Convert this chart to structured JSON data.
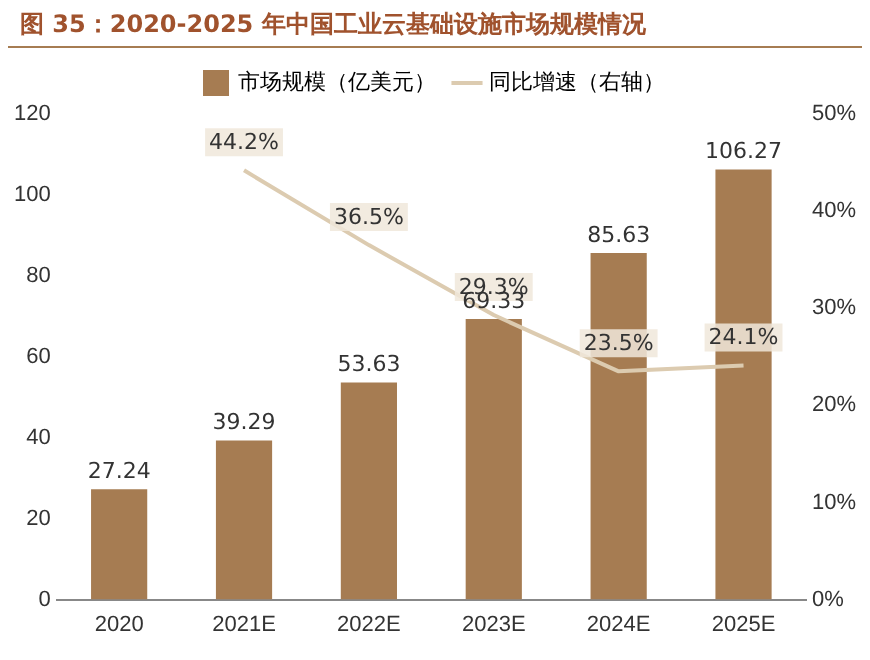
{
  "chart_data": {
    "type": "bar",
    "title": "图 35：2020-2025 年中国工业云基础设施市场规模情况",
    "categories": [
      "2020",
      "2021E",
      "2022E",
      "2023E",
      "2024E",
      "2025E"
    ],
    "series": [
      {
        "name": "市场规模（亿美元）",
        "color": "#a67c52",
        "values": [
          27.24,
          39.29,
          53.63,
          69.33,
          85.63,
          106.27
        ],
        "value_labels": [
          "27.24",
          "39.29",
          "53.63",
          "69.33",
          "85.63",
          "106.27"
        ]
      },
      {
        "name": "同比增速（右轴）",
        "type": "line",
        "axis": "y2",
        "color": "#dccbb0",
        "values": [
          null,
          44.2,
          36.5,
          29.3,
          23.5,
          24.1
        ],
        "value_labels": [
          null,
          "44.2%",
          "36.5%",
          "29.3%",
          "23.5%",
          "24.1%"
        ]
      }
    ],
    "ylim": [
      0,
      120
    ],
    "yticks": [
      0,
      20,
      40,
      60,
      80,
      100,
      120
    ],
    "y2lim": [
      0,
      50
    ],
    "y2ticks": [
      {
        "value": 0,
        "label": "0%"
      },
      {
        "value": 10,
        "label": "10%"
      },
      {
        "value": 20,
        "label": "20%"
      },
      {
        "value": 30,
        "label": "30%"
      },
      {
        "value": 40,
        "label": "40%"
      },
      {
        "value": 50,
        "label": "50%"
      }
    ],
    "grid": false,
    "legend": "top",
    "marker": "none"
  }
}
